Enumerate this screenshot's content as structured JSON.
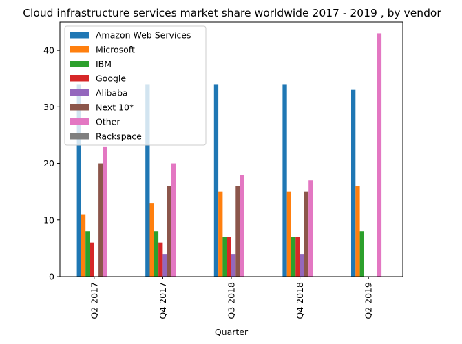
{
  "chart_data": {
    "type": "bar",
    "title": "Cloud infrastructure services market share worldwide 2017 - 2019 , by vendor",
    "xlabel": "Quarter",
    "ylabel": "",
    "categories": [
      "Q2 2017",
      "Q4 2017",
      "Q3 2018",
      "Q4 2018",
      "Q2 2019"
    ],
    "ylim": [
      0,
      45
    ],
    "yticks": [
      0,
      10,
      20,
      30,
      40
    ],
    "grid": false,
    "legend_position": "top-left",
    "series": [
      {
        "name": "Amazon Web Services",
        "color": "#1f77b4",
        "values": [
          34,
          34,
          34,
          34,
          33
        ]
      },
      {
        "name": "Microsoft",
        "color": "#ff7f0e",
        "values": [
          11,
          13,
          15,
          15,
          16
        ]
      },
      {
        "name": "IBM",
        "color": "#2ca02c",
        "values": [
          8,
          8,
          7,
          7,
          8
        ]
      },
      {
        "name": "Google",
        "color": "#d62728",
        "values": [
          6,
          6,
          7,
          7,
          null
        ]
      },
      {
        "name": "Alibaba",
        "color": "#9467bd",
        "values": [
          null,
          4,
          4,
          4,
          null
        ]
      },
      {
        "name": "Next 10*",
        "color": "#8c564b",
        "values": [
          20,
          16,
          16,
          15,
          null
        ]
      },
      {
        "name": "Other",
        "color": "#e377c2",
        "values": [
          23,
          20,
          18,
          17,
          43
        ]
      },
      {
        "name": "Rackspace",
        "color": "#7f7f7f",
        "values": [
          null,
          null,
          null,
          null,
          null
        ]
      }
    ]
  }
}
